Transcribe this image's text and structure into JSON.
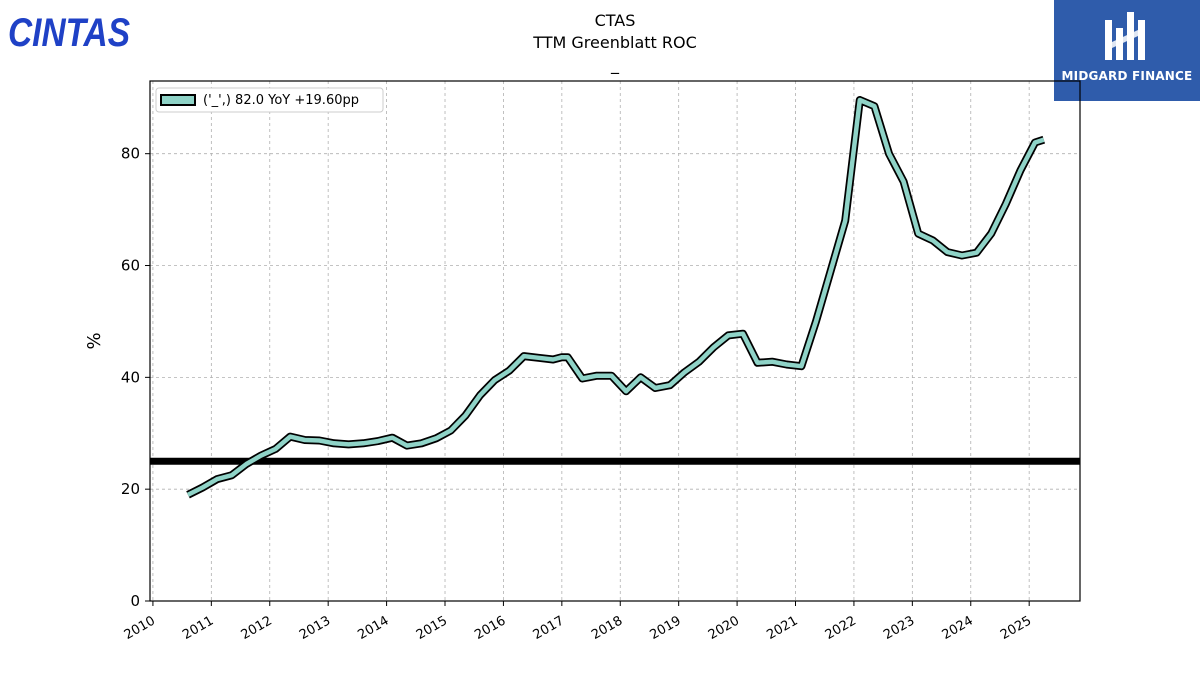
{
  "header": {
    "title": "CTAS",
    "subtitle": "TTM Greenblatt ROC",
    "subtitle2": "_"
  },
  "logos": {
    "left": {
      "text": "CINTAS",
      "color": "#1f41c6"
    },
    "right": {
      "text": "MIDGARD FINANCE",
      "background": "#2f5cab"
    }
  },
  "chart_data": {
    "type": "line",
    "ylabel": "%",
    "xlabel": "",
    "ylim": [
      0,
      93
    ],
    "xlim": [
      2009.95,
      2025.87
    ],
    "yticks": [
      0,
      20,
      40,
      60,
      80
    ],
    "xticks": [
      "2010",
      "2011",
      "2012",
      "2013",
      "2014",
      "2015",
      "2016",
      "2017",
      "2018",
      "2019",
      "2020",
      "2021",
      "2022",
      "2023",
      "2024",
      "2025"
    ],
    "grid": true,
    "legend_position": "top-left",
    "line_color": "#8fd3c7",
    "reference_line": {
      "y": 25,
      "color": "#000000"
    },
    "series": [
      {
        "name": "('_',) 82.0 YoY +19.60pp",
        "x": [
          2010.6,
          2010.85,
          2011.1,
          2011.35,
          2011.6,
          2011.85,
          2012.1,
          2012.35,
          2012.6,
          2012.85,
          2013.1,
          2013.35,
          2013.6,
          2013.85,
          2014.1,
          2014.35,
          2014.6,
          2014.85,
          2015.1,
          2015.35,
          2015.6,
          2015.85,
          2016.1,
          2016.35,
          2016.6,
          2016.85,
          2017.0,
          2017.1,
          2017.35,
          2017.6,
          2017.85,
          2018.1,
          2018.35,
          2018.6,
          2018.85,
          2019.1,
          2019.35,
          2019.6,
          2019.85,
          2020.1,
          2020.35,
          2020.6,
          2020.85,
          2021.1,
          2021.35,
          2021.6,
          2021.85,
          2022.1,
          2022.35,
          2022.6,
          2022.85,
          2023.1,
          2023.35,
          2023.6,
          2023.85,
          2024.1,
          2024.35,
          2024.6,
          2024.85,
          2025.1,
          2025.25
        ],
        "values": [
          19.0,
          20.3,
          21.8,
          22.5,
          24.5,
          26.0,
          27.2,
          29.4,
          28.8,
          28.7,
          28.2,
          28.0,
          28.2,
          28.6,
          29.2,
          27.8,
          28.2,
          29.1,
          30.5,
          33.2,
          36.8,
          39.5,
          41.2,
          43.8,
          43.5,
          43.2,
          43.6,
          43.6,
          39.8,
          40.3,
          40.3,
          37.5,
          40.0,
          38.1,
          38.6,
          40.9,
          42.8,
          45.4,
          47.5,
          47.8,
          42.6,
          42.8,
          42.3,
          42.0,
          50.0,
          59.0,
          68.0,
          89.6,
          88.5,
          80.0,
          75.0,
          65.7,
          64.5,
          62.4,
          61.8,
          62.3,
          65.7,
          71.0,
          77.0,
          82.0,
          82.5
        ]
      }
    ]
  }
}
